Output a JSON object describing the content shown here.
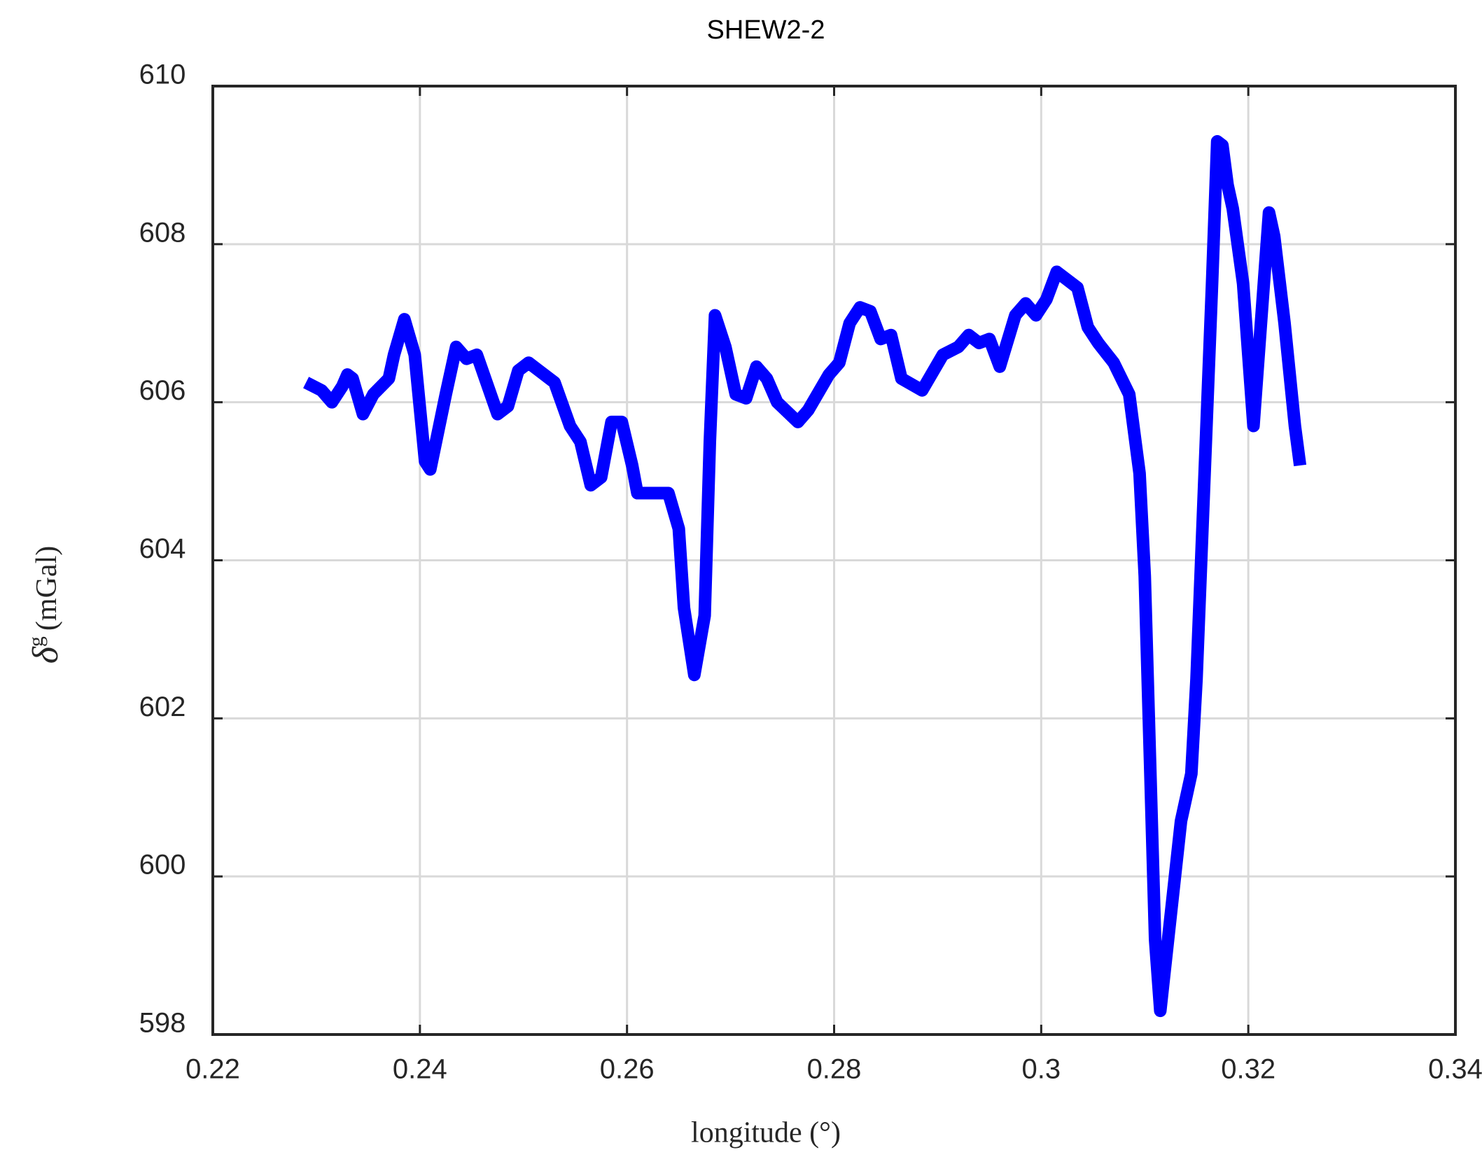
{
  "chart_data": {
    "type": "line",
    "title": "SHEW2-2",
    "xlabel": "longitude (°)",
    "ylabel": {
      "symbol": "δ",
      "superscript": "g",
      "unit": "(mGal)"
    },
    "xlim": [
      0.22,
      0.34
    ],
    "xticks": [
      0.22,
      0.24,
      0.26,
      0.28,
      0.3,
      0.32,
      0.34
    ],
    "ylim": [
      598,
      610
    ],
    "yticks": [
      598,
      600,
      602,
      604,
      606,
      608,
      610
    ],
    "grid": true,
    "x": [
      0.229,
      0.2305,
      0.2315,
      0.2325,
      0.233,
      0.2335,
      0.2345,
      0.2355,
      0.237,
      0.2375,
      0.2385,
      0.2395,
      0.2405,
      0.241,
      0.2425,
      0.2435,
      0.2445,
      0.2455,
      0.2475,
      0.2485,
      0.2495,
      0.2505,
      0.2515,
      0.253,
      0.2545,
      0.2555,
      0.2565,
      0.2575,
      0.2585,
      0.2595,
      0.2605,
      0.261,
      0.2625,
      0.264,
      0.265,
      0.2655,
      0.2665,
      0.2675,
      0.268,
      0.2685,
      0.2695,
      0.2705,
      0.2715,
      0.2725,
      0.2735,
      0.2745,
      0.2765,
      0.2775,
      0.2795,
      0.2805,
      0.2815,
      0.2825,
      0.2835,
      0.2845,
      0.2855,
      0.2865,
      0.2885,
      0.2905,
      0.292,
      0.293,
      0.294,
      0.295,
      0.296,
      0.2975,
      0.2985,
      0.2995,
      0.3005,
      0.3015,
      0.3025,
      0.3035,
      0.3045,
      0.3055,
      0.307,
      0.3085,
      0.3095,
      0.31,
      0.3105,
      0.311,
      0.3115,
      0.3125,
      0.3135,
      0.3145,
      0.315,
      0.3165,
      0.317,
      0.3175,
      0.318,
      0.3185,
      0.3195,
      0.3205,
      0.3215,
      0.322,
      0.3225,
      0.3235,
      0.3245,
      0.325
    ],
    "series": [
      {
        "name": "SHEW2-2",
        "color": "#0000ff",
        "values": [
          606.25,
          606.15,
          606.0,
          606.2,
          606.35,
          606.3,
          605.85,
          606.1,
          606.3,
          606.6,
          607.05,
          606.6,
          605.25,
          605.15,
          606.1,
          606.7,
          606.55,
          606.6,
          605.85,
          605.95,
          606.4,
          606.5,
          606.4,
          606.25,
          605.7,
          605.5,
          604.95,
          605.05,
          605.75,
          605.75,
          605.2,
          604.85,
          604.85,
          604.85,
          604.4,
          603.4,
          602.55,
          603.3,
          605.5,
          607.1,
          606.7,
          606.1,
          606.05,
          606.45,
          606.3,
          606.0,
          605.75,
          605.9,
          606.35,
          606.5,
          607.0,
          607.2,
          607.15,
          606.8,
          606.85,
          606.3,
          606.15,
          606.6,
          606.7,
          606.85,
          606.75,
          606.8,
          606.45,
          607.1,
          607.25,
          607.1,
          607.3,
          607.65,
          607.55,
          607.45,
          606.95,
          606.75,
          606.5,
          606.1,
          605.1,
          603.8,
          601.5,
          599.2,
          598.3,
          599.5,
          600.7,
          601.3,
          602.5,
          607.5,
          609.3,
          609.25,
          608.75,
          608.45,
          607.5,
          605.7,
          607.5,
          608.4,
          608.1,
          607.0,
          605.7,
          605.2
        ]
      }
    ]
  }
}
